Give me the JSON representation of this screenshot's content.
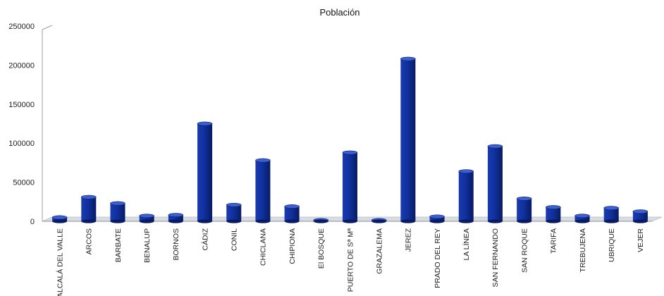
{
  "chart_data": {
    "type": "bar",
    "title": "Población",
    "xlabel": "",
    "ylabel": "",
    "ylim": [
      0,
      250000
    ],
    "yticks": [
      "0",
      "50000",
      "100000",
      "150000",
      "200000",
      "250000"
    ],
    "grid": false,
    "legend": "none",
    "bar_color": "#0d2a8a",
    "categories": [
      "ALCALÁ DEL VALLE",
      "ARCOS",
      "BARBATE",
      "BENALUP",
      "BORNOS",
      "CÁDIZ",
      "CONIL",
      "CHICLANA",
      "CHIPIONA",
      "El BOSQUE",
      "PUERTO DE Sª Mª",
      "GRAZALEMA",
      "JEREZ",
      "PRADO DEL REY",
      "LA LÍNEA",
      "SAN FERNANDO",
      "SAN ROQUE",
      "TARIFA",
      "TREBUJENA",
      "UBRIQUE",
      "VEJER"
    ],
    "values": [
      5000,
      31000,
      23000,
      7000,
      8000,
      125000,
      21000,
      78000,
      19000,
      1500,
      88000,
      1500,
      208000,
      6000,
      64000,
      96000,
      29000,
      18000,
      7000,
      17000,
      12500
    ]
  }
}
